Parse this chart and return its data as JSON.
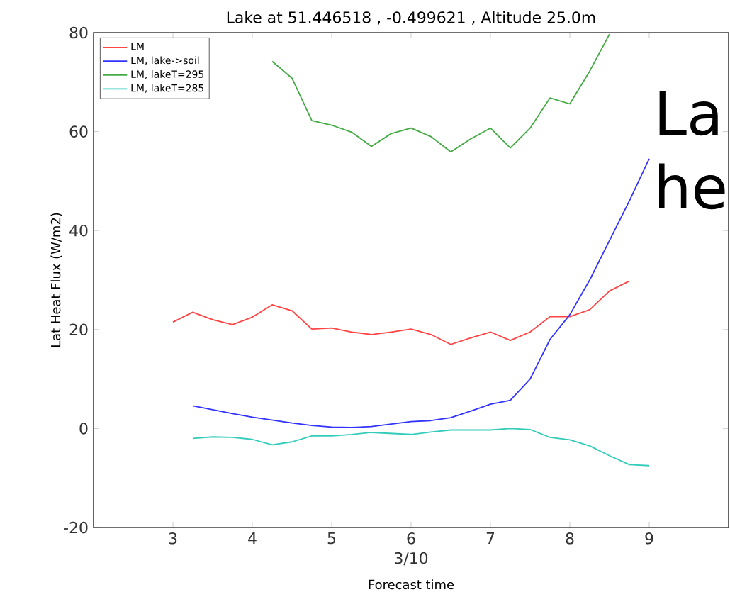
{
  "chart_data": {
    "type": "line",
    "title": "Lake at 51.446518 , -0.499621 , Altitude 25.0m",
    "xlabel": "Forecast time",
    "ylabel": "Lat Heat Flux (W/m2)",
    "annotations": [
      "3/10",
      "La",
      "he"
    ],
    "x": [
      3,
      3.25,
      3.5,
      3.75,
      4,
      4.25,
      4.5,
      4.75,
      5,
      5.25,
      5.5,
      5.75,
      6,
      6.25,
      6.5,
      6.75,
      7,
      7.25,
      7.5,
      7.75,
      8,
      8.25,
      8.5,
      8.75,
      9
    ],
    "series": [
      {
        "name": "LM",
        "color": "#ff4444",
        "values": [
          21.5,
          23.5,
          22,
          21,
          22.5,
          25,
          23.8,
          20.1,
          20.3,
          19.5,
          19,
          19.5,
          20.1,
          19,
          17,
          18.3,
          19.5,
          17.8,
          19.5,
          22.6,
          22.6,
          24,
          27.8,
          29.8,
          null
        ]
      },
      {
        "name": "LM, lake->soil",
        "color": "#3333ff",
        "values": [
          null,
          4.6,
          3.8,
          3.0,
          2.3,
          1.7,
          1.1,
          0.6,
          0.3,
          0.2,
          0.4,
          0.9,
          1.4,
          1.6,
          2.2,
          3.5,
          4.9,
          5.7,
          10,
          18,
          23,
          30,
          38,
          46,
          54.5
        ]
      },
      {
        "name": "LM, lakeT=295",
        "color": "#44aa44",
        "values": [
          null,
          null,
          null,
          null,
          null,
          74.2,
          70.8,
          62.2,
          61.3,
          59.9,
          57,
          59.6,
          60.7,
          59,
          55.9,
          58.5,
          60.7,
          56.7,
          60.7,
          66.8,
          65.6,
          72.2,
          79.7,
          null,
          null
        ]
      },
      {
        "name": "LM, lakeT=285",
        "color": "#33ccbb",
        "values": [
          null,
          -2,
          -1.7,
          -1.8,
          -2.2,
          -3.3,
          -2.7,
          -1.5,
          -1.5,
          -1.2,
          -0.8,
          -1,
          -1.2,
          -0.7,
          -0.3,
          -0.3,
          -0.3,
          0,
          -0.2,
          -1.8,
          -2.3,
          -3.5,
          -5.5,
          -7.3,
          -7.5
        ]
      }
    ],
    "xlim": [
      2,
      10
    ],
    "xticks": [
      3,
      4,
      5,
      6,
      7,
      8,
      9
    ],
    "ylim": [
      -20,
      80
    ],
    "yticks": [
      -20,
      0,
      20,
      40,
      60,
      80
    ],
    "grid": false,
    "legend": "top left",
    "marker": "none",
    "line_style": "solid"
  }
}
